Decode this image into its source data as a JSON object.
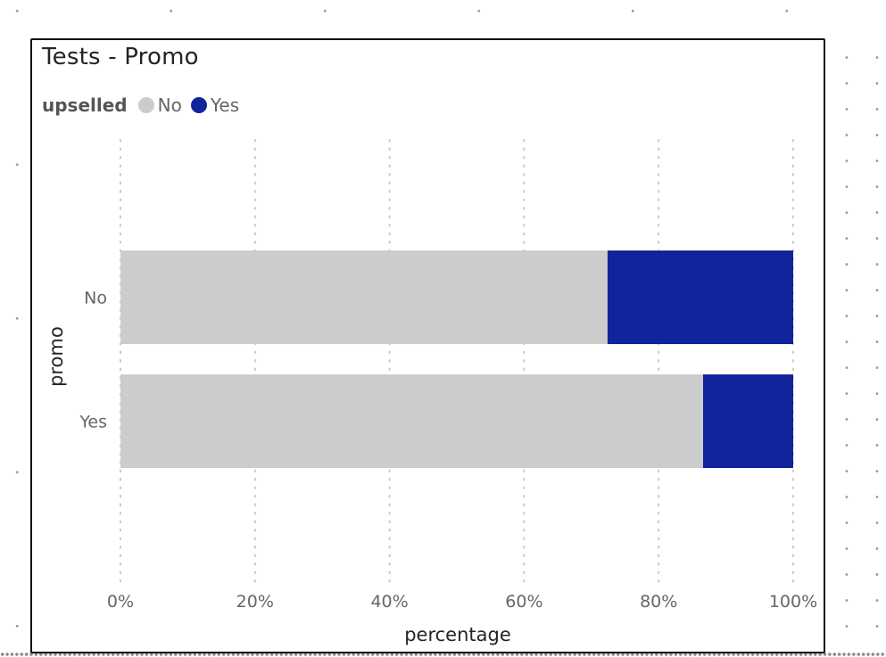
{
  "chart_data": {
    "type": "bar",
    "orientation": "horizontal",
    "stacked": "100%",
    "title": "Tests - Promo",
    "legend_title": "upselled",
    "legend_placement": "top-left",
    "categories": [
      "No",
      "Yes"
    ],
    "series": [
      {
        "name": "No",
        "color": "#cccccc",
        "values": [
          72.4,
          86.6
        ]
      },
      {
        "name": "Yes",
        "color": "#12239e",
        "values": [
          27.6,
          13.4
        ]
      }
    ],
    "xlabel": "percentage",
    "ylabel": "promo",
    "xlim": [
      0,
      100
    ],
    "xticks": [
      "0%",
      "20%",
      "40%",
      "60%",
      "80%",
      "100%"
    ],
    "grid": "vertical-dotted"
  }
}
